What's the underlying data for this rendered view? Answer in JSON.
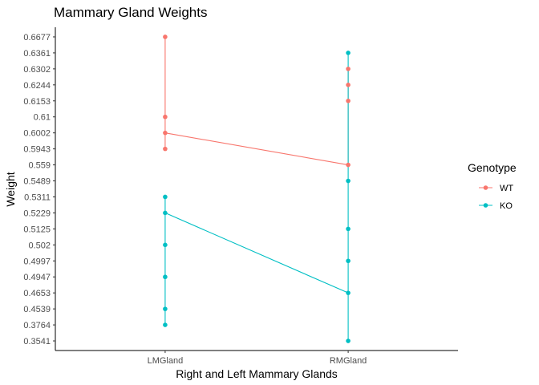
{
  "chart_data": {
    "type": "line",
    "title": "Mammary Gland Weights",
    "xlabel": "Right and Left Mammary Glands",
    "ylabel": "Weight",
    "categories": [
      "LMGland",
      "RMGland"
    ],
    "y_levels": [
      "0.3541",
      "0.3764",
      "0.4539",
      "0.4653",
      "0.4947",
      "0.4997",
      "0.502",
      "0.5125",
      "0.5229",
      "0.5311",
      "0.5489",
      "0.559",
      "0.5943",
      "0.6002",
      "0.61",
      "0.6153",
      "0.6244",
      "0.6302",
      "0.6361",
      "0.6677"
    ],
    "legend_title": "Genotype",
    "legend_position": "right",
    "grid": false,
    "series": [
      {
        "name": "WT",
        "color": "#F8766D",
        "points": [
          {
            "x": "LMGland",
            "y": "0.5943"
          },
          {
            "x": "LMGland",
            "y": "0.6002"
          },
          {
            "x": "LMGland",
            "y": "0.61"
          },
          {
            "x": "LMGland",
            "y": "0.6677"
          },
          {
            "x": "RMGland",
            "y": "0.559"
          },
          {
            "x": "RMGland",
            "y": "0.6153"
          },
          {
            "x": "RMGland",
            "y": "0.6244"
          },
          {
            "x": "RMGland",
            "y": "0.6302"
          }
        ],
        "line": [
          {
            "x": "LMGland",
            "y": "0.6002"
          },
          {
            "x": "RMGland",
            "y": "0.559"
          }
        ]
      },
      {
        "name": "KO",
        "color": "#00BFC4",
        "points": [
          {
            "x": "LMGland",
            "y": "0.3764"
          },
          {
            "x": "LMGland",
            "y": "0.4539"
          },
          {
            "x": "LMGland",
            "y": "0.4947"
          },
          {
            "x": "LMGland",
            "y": "0.502"
          },
          {
            "x": "LMGland",
            "y": "0.5229"
          },
          {
            "x": "LMGland",
            "y": "0.5311"
          },
          {
            "x": "RMGland",
            "y": "0.3541"
          },
          {
            "x": "RMGland",
            "y": "0.4653"
          },
          {
            "x": "RMGland",
            "y": "0.4997"
          },
          {
            "x": "RMGland",
            "y": "0.5125"
          },
          {
            "x": "RMGland",
            "y": "0.5489"
          },
          {
            "x": "RMGland",
            "y": "0.6361"
          }
        ],
        "line": [
          {
            "x": "LMGland",
            "y": "0.5229"
          },
          {
            "x": "RMGland",
            "y": "0.4653"
          }
        ]
      }
    ]
  }
}
